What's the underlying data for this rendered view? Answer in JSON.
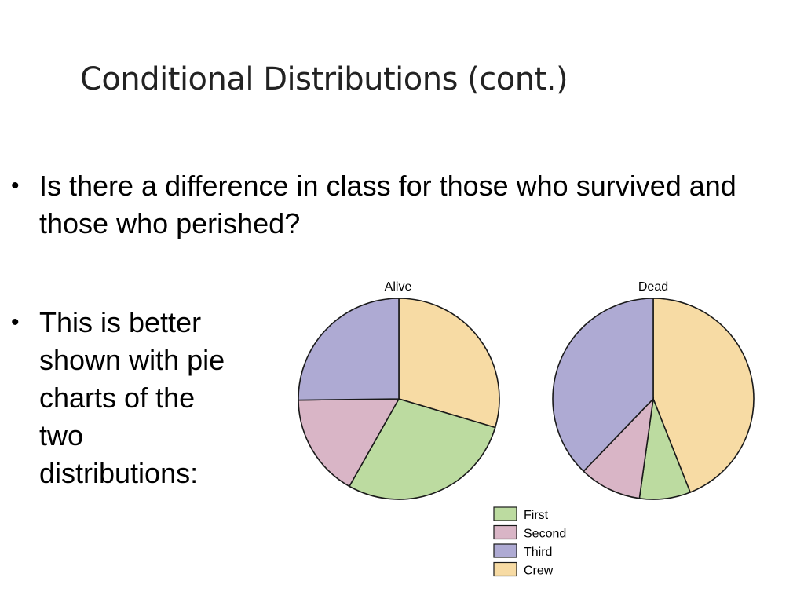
{
  "slide": {
    "title": "Conditional Distributions (cont.)",
    "bullets": [
      "Is there a difference in class for those who survived and those who perished?",
      "This is better shown with pie charts of the two distributions:"
    ],
    "bullet_glyph": "•"
  },
  "chart_data": [
    {
      "type": "pie",
      "title": "Alive",
      "labels": [
        "Crew",
        "First",
        "Second",
        "Third"
      ],
      "values": [
        29.6,
        28.6,
        16.6,
        25.2
      ],
      "colors": [
        "#f7dba4",
        "#bcdba0",
        "#d9b5c6",
        "#aeaad3"
      ]
    },
    {
      "type": "pie",
      "title": "Dead",
      "labels": [
        "Crew",
        "First",
        "Second",
        "Third"
      ],
      "values": [
        44.0,
        8.2,
        10.0,
        37.8
      ],
      "colors": [
        "#f7dba4",
        "#bcdba0",
        "#d9b5c6",
        "#aeaad3"
      ]
    }
  ],
  "legend": {
    "placement": "bottom-center",
    "items": [
      {
        "label": "First",
        "color": "#bcdba0"
      },
      {
        "label": "Second",
        "color": "#d9b5c6"
      },
      {
        "label": "Third",
        "color": "#aeaad3"
      },
      {
        "label": "Crew",
        "color": "#f7dba4"
      }
    ]
  }
}
